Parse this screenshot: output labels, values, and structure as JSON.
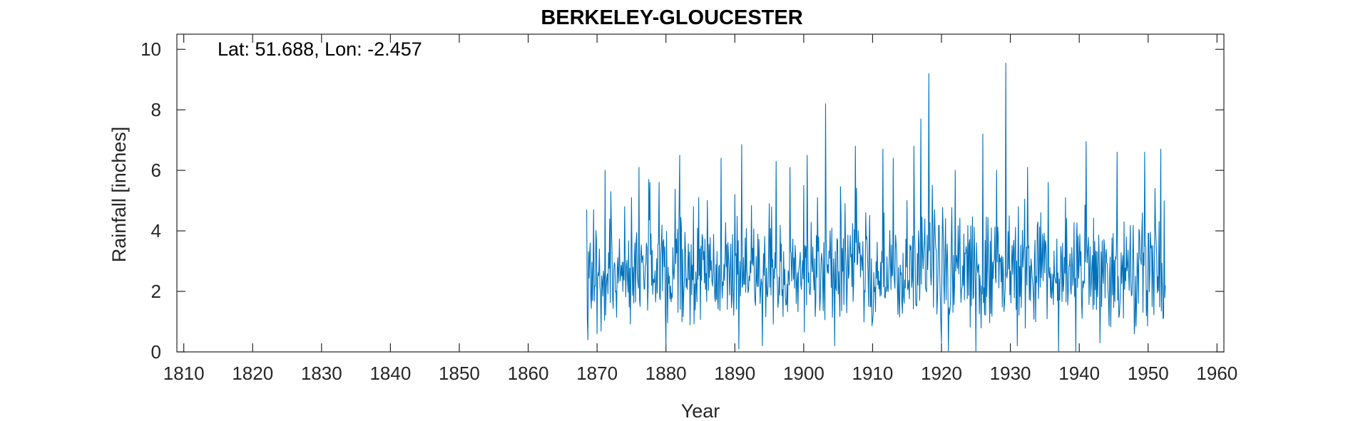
{
  "chart_data": {
    "type": "line",
    "title": "BERKELEY-GLOUCESTER",
    "annotation": "Lat: 51.688, Lon: -2.457",
    "xlabel": "Year",
    "ylabel": "Rainfall [inches]",
    "xlim": [
      1809,
      1961
    ],
    "ylim": [
      0,
      10.5
    ],
    "xticks": [
      1810,
      1820,
      1830,
      1840,
      1850,
      1860,
      1870,
      1880,
      1890,
      1900,
      1910,
      1920,
      1930,
      1940,
      1950,
      1960
    ],
    "yticks": [
      0,
      2,
      4,
      6,
      8,
      10
    ],
    "grid": false,
    "series": [
      {
        "color": "#0072BD",
        "x_start": 1868.5,
        "x_end": 1952.5,
        "step": 0.083333,
        "anchors": [
          [
            1868.5,
            4.7
          ],
          [
            1868.7,
            0.4
          ],
          [
            1869.0,
            3.6
          ],
          [
            1869.5,
            4.7
          ],
          [
            1870.0,
            0.6
          ],
          [
            1871.2,
            6.0
          ],
          [
            1872.0,
            5.3
          ],
          [
            1874.0,
            4.8
          ],
          [
            1875.0,
            5.1
          ],
          [
            1876.1,
            6.1
          ],
          [
            1877.5,
            5.7
          ],
          [
            1879.0,
            5.6
          ],
          [
            1880.0,
            0.2
          ],
          [
            1882.0,
            6.5
          ],
          [
            1884.0,
            4.8
          ],
          [
            1886.0,
            5.0
          ],
          [
            1888.0,
            6.4
          ],
          [
            1890.0,
            5.2
          ],
          [
            1890.6,
            0.1
          ],
          [
            1891.0,
            6.85
          ],
          [
            1892.5,
            2.9
          ],
          [
            1894.0,
            0.2
          ],
          [
            1896.0,
            6.3
          ],
          [
            1898.0,
            6.1
          ],
          [
            1900.0,
            5.5
          ],
          [
            1900.5,
            6.5
          ],
          [
            1902.0,
            5.1
          ],
          [
            1903.2,
            8.2
          ],
          [
            1904.5,
            0.2
          ],
          [
            1906.0,
            4.9
          ],
          [
            1907.5,
            6.8
          ],
          [
            1909.0,
            4.6
          ],
          [
            1911.5,
            6.7
          ],
          [
            1913.0,
            6.4
          ],
          [
            1915.0,
            5.0
          ],
          [
            1916.0,
            6.8
          ],
          [
            1917.0,
            7.7
          ],
          [
            1918.2,
            9.2
          ],
          [
            1919.0,
            4.7
          ],
          [
            1920.0,
            0.3
          ],
          [
            1921.0,
            0.0
          ],
          [
            1922.0,
            6.0
          ],
          [
            1925.0,
            0.0
          ],
          [
            1926.0,
            7.2
          ],
          [
            1928.0,
            6.0
          ],
          [
            1929.3,
            9.55
          ],
          [
            1931.0,
            0.2
          ],
          [
            1932.5,
            6.1
          ],
          [
            1934.0,
            4.3
          ],
          [
            1935.5,
            5.6
          ],
          [
            1937.0,
            0.0
          ],
          [
            1938.0,
            5.1
          ],
          [
            1939.5,
            0.0
          ],
          [
            1941.0,
            6.95
          ],
          [
            1943.0,
            0.3
          ],
          [
            1945.5,
            6.6
          ],
          [
            1946.5,
            4.3
          ],
          [
            1948.0,
            0.6
          ],
          [
            1949.5,
            6.6
          ],
          [
            1951.0,
            5.4
          ],
          [
            1951.8,
            6.7
          ],
          [
            1952.5,
            2.2
          ]
        ]
      }
    ]
  }
}
